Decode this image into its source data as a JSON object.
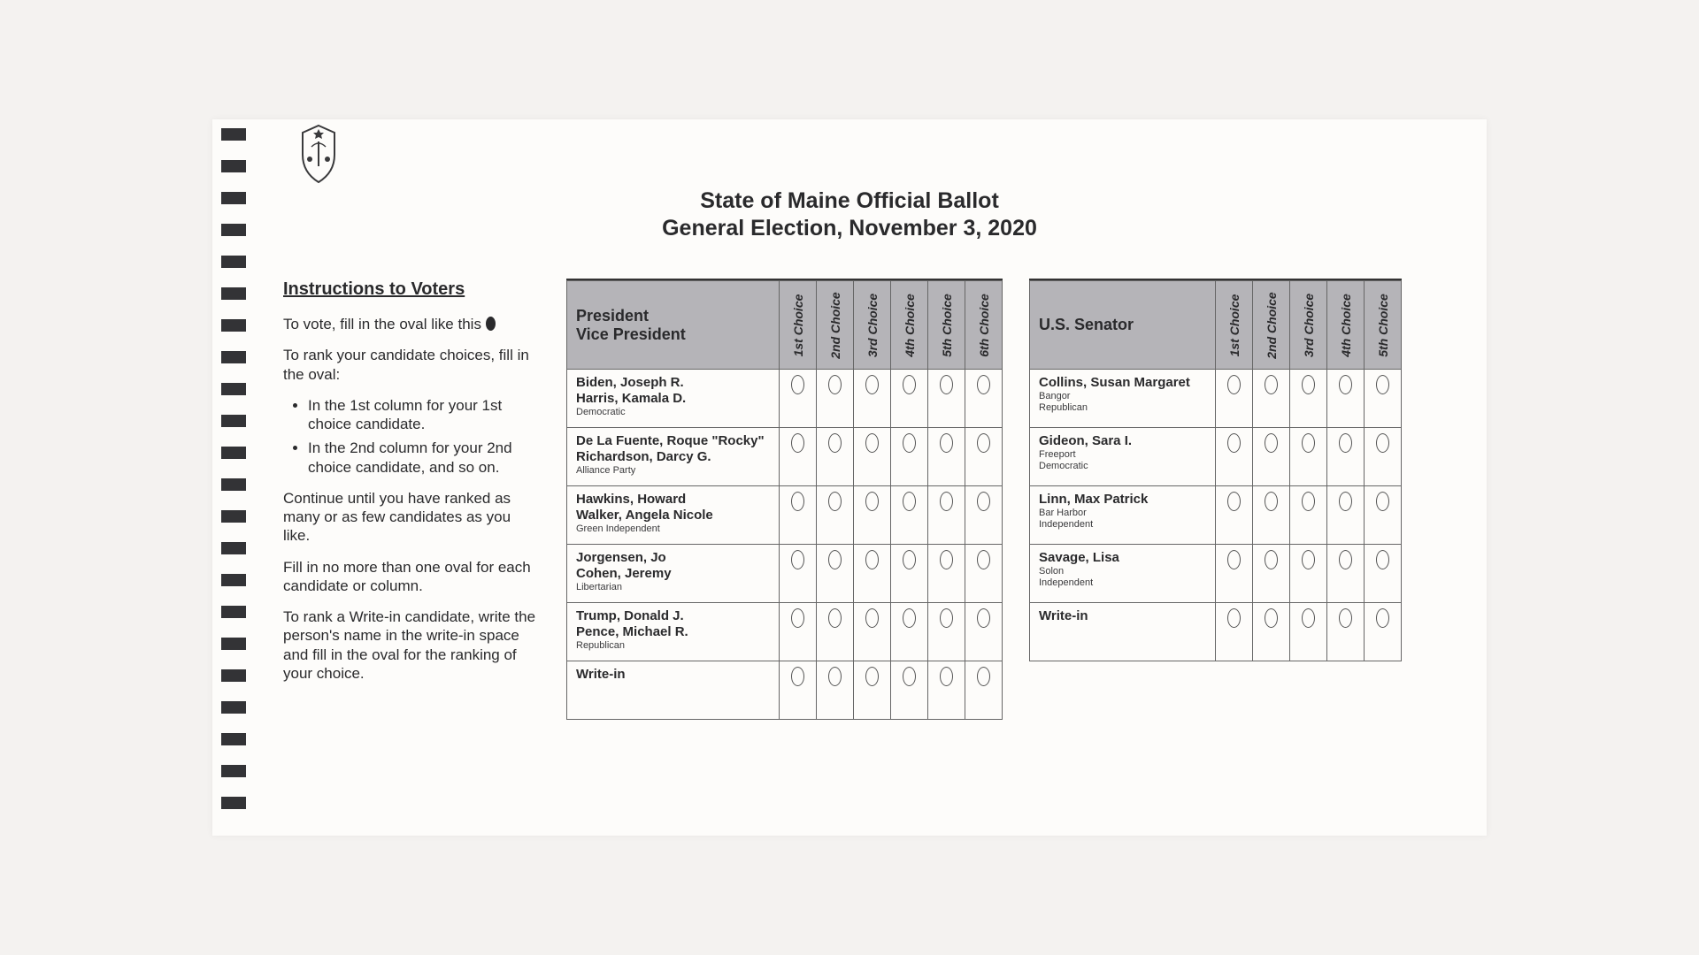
{
  "header": {
    "line1": "State of Maine Official Ballot",
    "line2": "General Election, November 3, 2020"
  },
  "instructions": {
    "title": "Instructions to Voters",
    "p1_before": "To vote, fill in the oval like this",
    "p2": "To rank your candidate choices, fill in the oval:",
    "li1": "In the 1st column for your 1st choice candidate.",
    "li2": "In the 2nd column for your 2nd choice candidate, and so on.",
    "p3": "Continue until you have ranked as many or as few candidates as you like.",
    "p4": "Fill in no more than one oval for each candidate or column.",
    "p5": "To rank a Write-in candidate, write the person's name in the write-in space and fill in the oval for the ranking of your choice."
  },
  "choices6": [
    "1st Choice",
    "2nd Choice",
    "3rd Choice",
    "4th Choice",
    "5th Choice",
    "6th Choice"
  ],
  "choices5": [
    "1st Choice",
    "2nd Choice",
    "3rd Choice",
    "4th Choice",
    "5th Choice"
  ],
  "president": {
    "title_a": "President",
    "title_b": "Vice President",
    "candidates": [
      {
        "line1": "Biden, Joseph R.",
        "line2": "Harris, Kamala D.",
        "party": "Democratic"
      },
      {
        "line1": "De La Fuente, Roque \"Rocky\"",
        "line2": "Richardson, Darcy G.",
        "party": "Alliance Party"
      },
      {
        "line1": "Hawkins, Howard",
        "line2": "Walker, Angela Nicole",
        "party": "Green Independent"
      },
      {
        "line1": "Jorgensen, Jo",
        "line2": "Cohen, Jeremy",
        "party": "Libertarian"
      },
      {
        "line1": "Trump, Donald J.",
        "line2": "Pence, Michael R.",
        "party": "Republican"
      },
      {
        "line1": "Write-in",
        "line2": "",
        "party": ""
      }
    ]
  },
  "senator": {
    "title": "U.S. Senator",
    "candidates": [
      {
        "line1": "Collins, Susan Margaret",
        "line2": "Bangor",
        "party": "Republican"
      },
      {
        "line1": "Gideon, Sara I.",
        "line2": "Freeport",
        "party": "Democratic"
      },
      {
        "line1": "Linn, Max Patrick",
        "line2": "Bar Harbor",
        "party": "Independent"
      },
      {
        "line1": "Savage, Lisa",
        "line2": "Solon",
        "party": "Independent"
      },
      {
        "line1": "Write-in",
        "line2": "",
        "party": ""
      }
    ]
  },
  "style": {
    "header_bg": "#b5b4b8",
    "border_color": "#666666",
    "text_color": "#2a2a2c",
    "page_bg": "#fdfcfa",
    "timing_mark_color": "#333336"
  }
}
